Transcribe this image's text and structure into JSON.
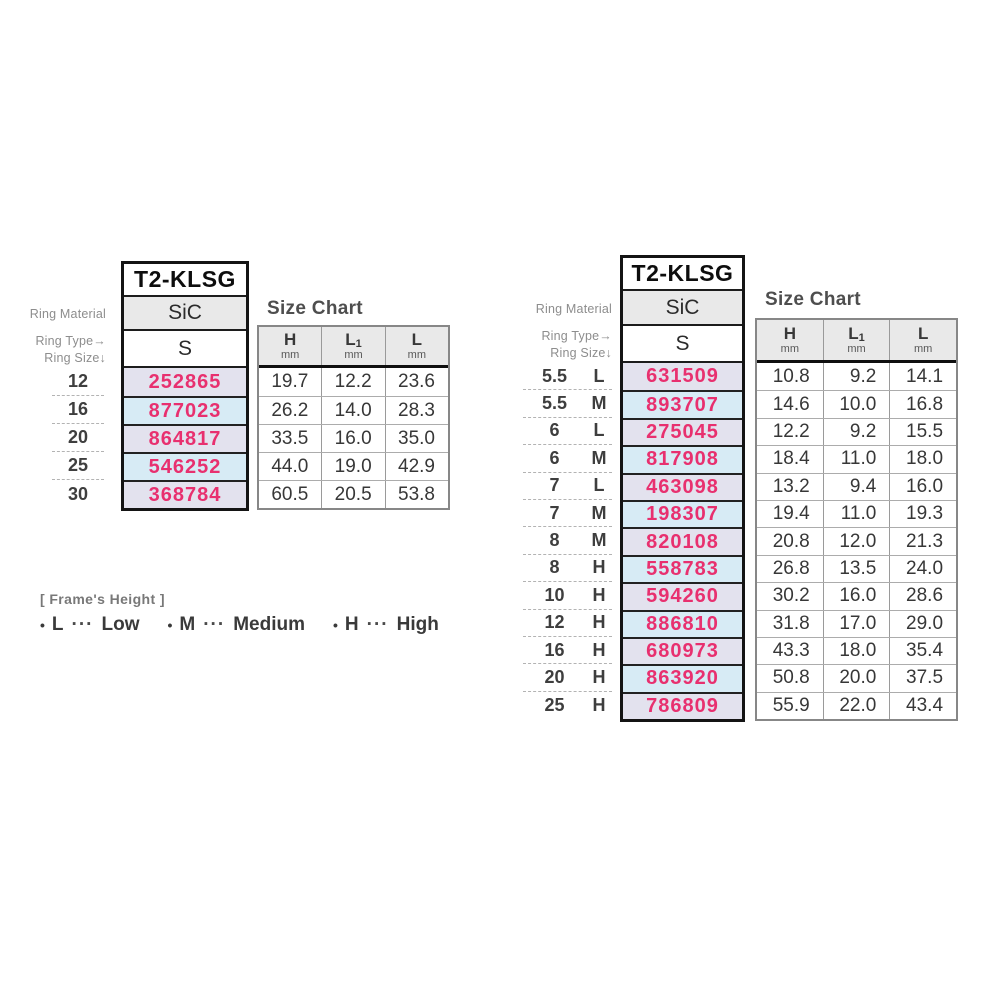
{
  "labels": {
    "ring_material": "Ring Material",
    "ring_type": "Ring Type→",
    "ring_size": "Ring Size↓",
    "size_chart_title": "Size Chart"
  },
  "colors": {
    "part_number_text": "#e8306f",
    "row_odd_bg": "#e3e2ee",
    "row_even_bg": "#d7ebf5",
    "header_bg": "#e9e9e9"
  },
  "size_chart_columns": [
    {
      "name": "H",
      "sub": "",
      "unit": "mm"
    },
    {
      "name": "L",
      "sub": "1",
      "unit": "mm"
    },
    {
      "name": "L",
      "sub": "",
      "unit": "mm"
    }
  ],
  "left_table": {
    "model": "T2-KLSG",
    "ring_material": "SiC",
    "ring_type": "S",
    "rows": [
      {
        "size": "12",
        "height": "",
        "part": "252865",
        "H": "19.7",
        "L1": "12.2",
        "L": "23.6"
      },
      {
        "size": "16",
        "height": "",
        "part": "877023",
        "H": "26.2",
        "L1": "14.0",
        "L": "28.3"
      },
      {
        "size": "20",
        "height": "",
        "part": "864817",
        "H": "33.5",
        "L1": "16.0",
        "L": "35.0"
      },
      {
        "size": "25",
        "height": "",
        "part": "546252",
        "H": "44.0",
        "L1": "19.0",
        "L": "42.9"
      },
      {
        "size": "30",
        "height": "",
        "part": "368784",
        "H": "60.5",
        "L1": "20.5",
        "L": "53.8"
      }
    ]
  },
  "right_table": {
    "model": "T2-KLSG",
    "ring_material": "SiC",
    "ring_type": "S",
    "rows": [
      {
        "size": "5.5",
        "height": "L",
        "part": "631509",
        "H": "10.8",
        "L1": "9.2",
        "L": "14.1"
      },
      {
        "size": "5.5",
        "height": "M",
        "part": "893707",
        "H": "14.6",
        "L1": "10.0",
        "L": "16.8"
      },
      {
        "size": "6",
        "height": "L",
        "part": "275045",
        "H": "12.2",
        "L1": "9.2",
        "L": "15.5"
      },
      {
        "size": "6",
        "height": "M",
        "part": "817908",
        "H": "18.4",
        "L1": "11.0",
        "L": "18.0"
      },
      {
        "size": "7",
        "height": "L",
        "part": "463098",
        "H": "13.2",
        "L1": "9.4",
        "L": "16.0"
      },
      {
        "size": "7",
        "height": "M",
        "part": "198307",
        "H": "19.4",
        "L1": "11.0",
        "L": "19.3"
      },
      {
        "size": "8",
        "height": "M",
        "part": "820108",
        "H": "20.8",
        "L1": "12.0",
        "L": "21.3"
      },
      {
        "size": "8",
        "height": "H",
        "part": "558783",
        "H": "26.8",
        "L1": "13.5",
        "L": "24.0"
      },
      {
        "size": "10",
        "height": "H",
        "part": "594260",
        "H": "30.2",
        "L1": "16.0",
        "L": "28.6"
      },
      {
        "size": "12",
        "height": "H",
        "part": "886810",
        "H": "31.8",
        "L1": "17.0",
        "L": "29.0"
      },
      {
        "size": "16",
        "height": "H",
        "part": "680973",
        "H": "43.3",
        "L1": "18.0",
        "L": "35.4"
      },
      {
        "size": "20",
        "height": "H",
        "part": "863920",
        "H": "50.8",
        "L1": "20.0",
        "L": "37.5"
      },
      {
        "size": "25",
        "height": "H",
        "part": "786809",
        "H": "55.9",
        "L1": "22.0",
        "L": "43.4"
      }
    ]
  },
  "legend": {
    "title": "[ Frame's Height ]",
    "bullet": "•",
    "dots": "···",
    "items": [
      {
        "key": "L",
        "label": "Low"
      },
      {
        "key": "M",
        "label": "Medium"
      },
      {
        "key": "H",
        "label": "High"
      }
    ]
  }
}
